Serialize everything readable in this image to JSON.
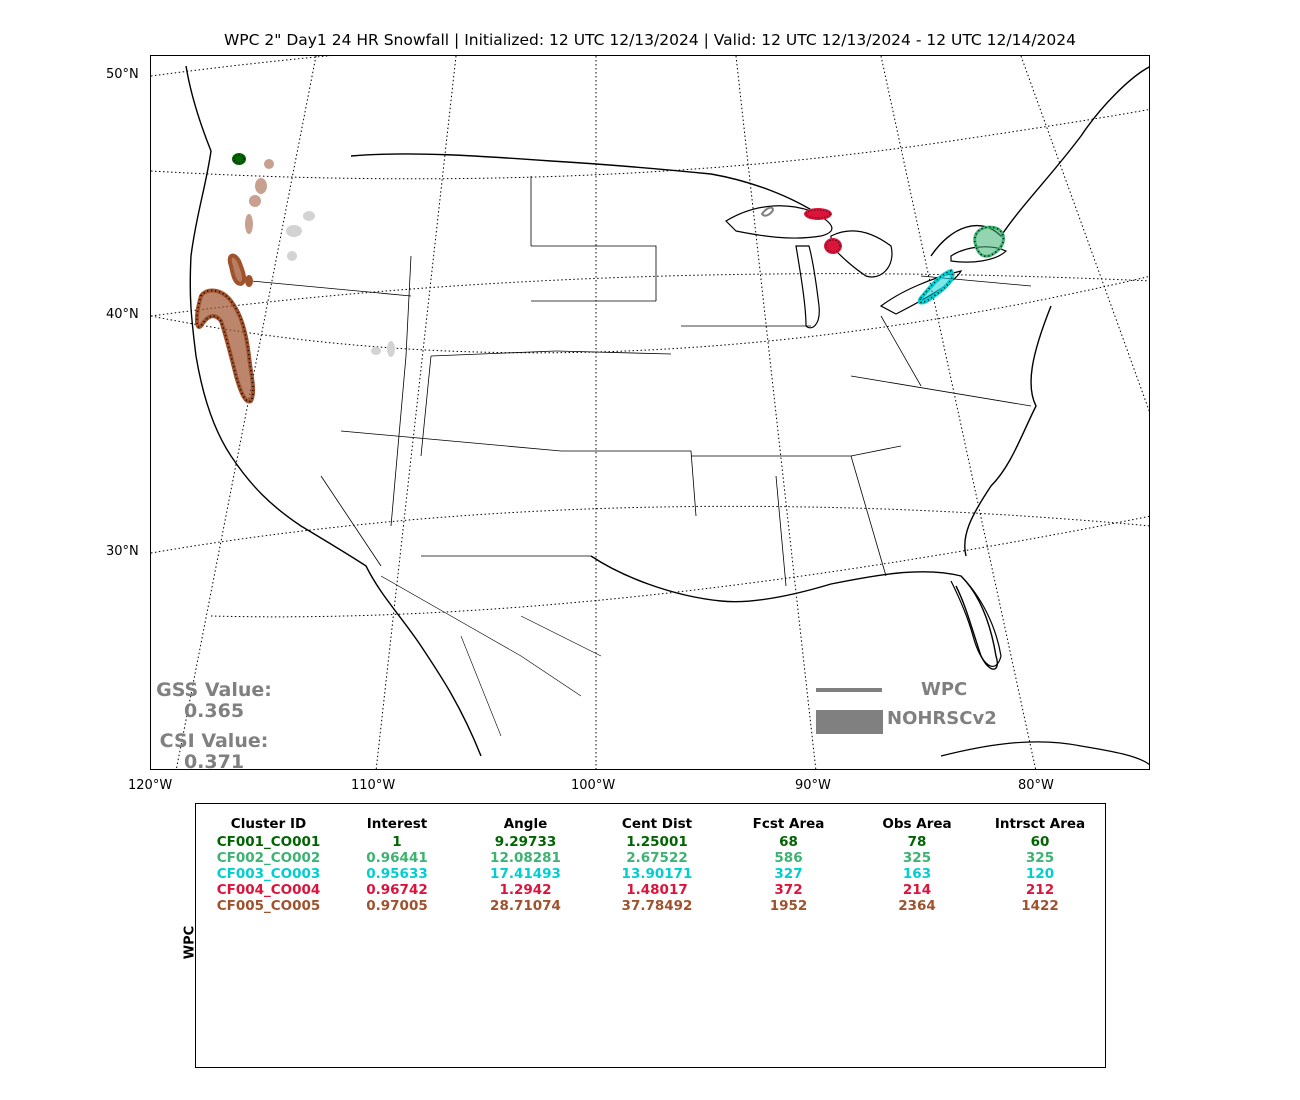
{
  "title": "WPC 2\" Day1 24 HR Snowfall | Initialized: 12 UTC 12/13/2024 | Valid: 12 UTC 12/13/2024 - 12 UTC 12/14/2024",
  "latitude_labels": [
    "50°N",
    "40°N",
    "30°N"
  ],
  "longitude_labels": [
    "120°W",
    "110°W",
    "100°W",
    "90°W",
    "80°W"
  ],
  "stats": {
    "gss_label": "GSS Value:",
    "gss_value": "0.365",
    "csi_label": "CSI Value:",
    "csi_value": "0.371"
  },
  "legend": {
    "forecast_label": "WPC",
    "observed_label": "NOHRSCv2",
    "color": "#808080"
  },
  "table": {
    "row_label": "WPC",
    "headers": [
      "Cluster ID",
      "Interest",
      "Angle",
      "Cent Dist",
      "Fcst Area",
      "Obs Area",
      "Intrsct Area"
    ],
    "rows": [
      {
        "color": "#006400",
        "cells": [
          "CF001_CO001",
          "1",
          "9.29733",
          "1.25001",
          "68",
          "78",
          "60"
        ]
      },
      {
        "color": "#3cb371",
        "cells": [
          "CF002_CO002",
          "0.96441",
          "12.08281",
          "2.67522",
          "586",
          "325",
          "325"
        ]
      },
      {
        "color": "#00ced1",
        "cells": [
          "CF003_CO003",
          "0.95633",
          "17.41493",
          "13.90171",
          "327",
          "163",
          "120"
        ]
      },
      {
        "color": "#dc143c",
        "cells": [
          "CF004_CO004",
          "0.96742",
          "1.2942",
          "1.48017",
          "372",
          "214",
          "212"
        ]
      },
      {
        "color": "#a0522d",
        "cells": [
          "CF005_CO005",
          "0.97005",
          "28.71074",
          "37.78492",
          "1952",
          "2364",
          "1422"
        ]
      }
    ]
  },
  "cluster_colors": {
    "cf001": "#006400",
    "cf002": "#3cb371",
    "cf003": "#00ced1",
    "cf004": "#dc143c",
    "cf005": "#a0522d",
    "unmatched_forecast": "#d3d3d3",
    "unmatched_observed": "#c8a090"
  }
}
